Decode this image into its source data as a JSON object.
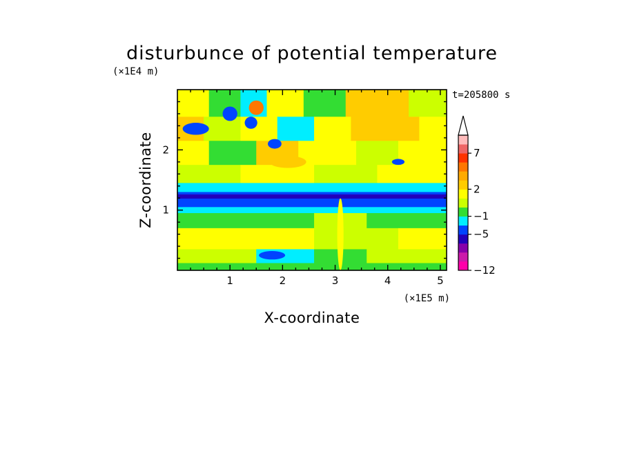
{
  "chart_data": {
    "type": "heatmap",
    "title": "disturbunce of potential temperature",
    "xlabel": "X-coordinate",
    "ylabel": "Z-coordinate",
    "x_unit": "(×1E5 m)",
    "y_unit": "(×1E4 m)",
    "time_label": "t=205800 s",
    "xlim": [
      0,
      5.12
    ],
    "ylim": [
      0,
      3.0
    ],
    "x_ticks": [
      "1",
      "2",
      "3",
      "4",
      "5"
    ],
    "y_ticks": [
      "1",
      "2"
    ],
    "colorbar": {
      "labels": [
        "7",
        "2",
        "−1",
        "−5",
        "−12"
      ],
      "colors_low_to_high": [
        "#ff00aa",
        "#cc1aaa",
        "#8800aa",
        "#2200bb",
        "#0044ff",
        "#00eeff",
        "#33dd33",
        "#ccff00",
        "#ffff00",
        "#ffcc00",
        "#ffaa00",
        "#ff7700",
        "#ff3300",
        "#ee6666",
        "#ffbbbb"
      ],
      "extends_high": true
    },
    "rows": [
      {
        "z": [
          2.55,
          3.0
        ],
        "cells": [
          {
            "x": [
              0.0,
              0.6
            ],
            "c": "#ffff00"
          },
          {
            "x": [
              0.6,
              1.2
            ],
            "c": "#33dd33"
          },
          {
            "x": [
              1.2,
              1.7
            ],
            "c": "#00eeff"
          },
          {
            "x": [
              1.7,
              2.4
            ],
            "c": "#ffff00"
          },
          {
            "x": [
              2.4,
              3.2
            ],
            "c": "#33dd33"
          },
          {
            "x": [
              3.2,
              4.4
            ],
            "c": "#ffcc00"
          },
          {
            "x": [
              4.4,
              5.12
            ],
            "c": "#ccff00"
          }
        ]
      },
      {
        "z": [
          2.15,
          2.55
        ],
        "cells": [
          {
            "x": [
              0.0,
              0.5
            ],
            "c": "#ffcc00"
          },
          {
            "x": [
              0.5,
              1.2
            ],
            "c": "#ccff00"
          },
          {
            "x": [
              1.2,
              1.9
            ],
            "c": "#ffff00"
          },
          {
            "x": [
              1.9,
              2.6
            ],
            "c": "#00eeff"
          },
          {
            "x": [
              2.6,
              3.3
            ],
            "c": "#ffff00"
          },
          {
            "x": [
              3.3,
              4.6
            ],
            "c": "#ffcc00"
          },
          {
            "x": [
              4.6,
              5.12
            ],
            "c": "#ffff00"
          }
        ]
      },
      {
        "z": [
          1.75,
          2.15
        ],
        "cells": [
          {
            "x": [
              0.0,
              0.6
            ],
            "c": "#ffff00"
          },
          {
            "x": [
              0.6,
              1.5
            ],
            "c": "#33dd33"
          },
          {
            "x": [
              1.5,
              2.3
            ],
            "c": "#ffcc00"
          },
          {
            "x": [
              2.3,
              3.4
            ],
            "c": "#ffff00"
          },
          {
            "x": [
              3.4,
              4.2
            ],
            "c": "#ccff00"
          },
          {
            "x": [
              4.2,
              5.12
            ],
            "c": "#ffff00"
          }
        ]
      },
      {
        "z": [
          1.45,
          1.75
        ],
        "cells": [
          {
            "x": [
              0.0,
              1.2
            ],
            "c": "#ccff00"
          },
          {
            "x": [
              1.2,
              2.6
            ],
            "c": "#ffff00"
          },
          {
            "x": [
              2.6,
              3.8
            ],
            "c": "#ccff00"
          },
          {
            "x": [
              3.8,
              5.12
            ],
            "c": "#ffff00"
          }
        ]
      },
      {
        "z": [
          1.3,
          1.45
        ],
        "cells": [
          {
            "x": [
              0.0,
              5.12
            ],
            "c": "#00eeff"
          }
        ]
      },
      {
        "z": [
          1.05,
          1.3
        ],
        "cells": [
          {
            "x": [
              0.0,
              5.12
            ],
            "c": "#0044ff"
          }
        ]
      },
      {
        "z": [
          0.95,
          1.05
        ],
        "cells": [
          {
            "x": [
              0.0,
              5.12
            ],
            "c": "#00eeff"
          }
        ]
      },
      {
        "z": [
          0.7,
          0.95
        ],
        "cells": [
          {
            "x": [
              0.0,
              2.6
            ],
            "c": "#33dd33"
          },
          {
            "x": [
              2.6,
              3.6
            ],
            "c": "#ccff00"
          },
          {
            "x": [
              3.6,
              5.12
            ],
            "c": "#33dd33"
          }
        ]
      },
      {
        "z": [
          0.35,
          0.7
        ],
        "cells": [
          {
            "x": [
              0.0,
              2.6
            ],
            "c": "#ffff00"
          },
          {
            "x": [
              2.6,
              4.2
            ],
            "c": "#ccff00"
          },
          {
            "x": [
              4.2,
              5.12
            ],
            "c": "#ffff00"
          }
        ]
      },
      {
        "z": [
          0.12,
          0.35
        ],
        "cells": [
          {
            "x": [
              0.0,
              1.5
            ],
            "c": "#ccff00"
          },
          {
            "x": [
              1.5,
              2.6
            ],
            "c": "#00eeff"
          },
          {
            "x": [
              2.6,
              3.6
            ],
            "c": "#33dd33"
          },
          {
            "x": [
              3.6,
              5.12
            ],
            "c": "#ccff00"
          }
        ]
      },
      {
        "z": [
          0.0,
          0.12
        ],
        "cells": [
          {
            "x": [
              0.0,
              5.12
            ],
            "c": "#33dd33"
          }
        ]
      }
    ],
    "features": [
      {
        "type": "blob",
        "x": 1.0,
        "z": 2.6,
        "rx": 0.14,
        "rz": 0.12,
        "c": "#0044ff"
      },
      {
        "type": "blob",
        "x": 1.5,
        "z": 2.7,
        "rx": 0.14,
        "rz": 0.12,
        "c": "#ff7700"
      },
      {
        "type": "blob",
        "x": 1.4,
        "z": 2.45,
        "rx": 0.12,
        "rz": 0.1,
        "c": "#0044ff"
      },
      {
        "type": "blob",
        "x": 1.85,
        "z": 2.1,
        "rx": 0.13,
        "rz": 0.08,
        "c": "#0044ff"
      },
      {
        "type": "blob",
        "x": 2.1,
        "z": 1.8,
        "rx": 0.35,
        "rz": 0.1,
        "c": "#ffcc00"
      },
      {
        "type": "blob",
        "x": 0.35,
        "z": 2.35,
        "rx": 0.25,
        "rz": 0.1,
        "c": "#0044ff"
      },
      {
        "type": "blob",
        "x": 4.2,
        "z": 1.8,
        "rx": 0.12,
        "rz": 0.05,
        "c": "#0044ff"
      },
      {
        "type": "blob",
        "x": 1.8,
        "z": 0.25,
        "rx": 0.25,
        "rz": 0.07,
        "c": "#0044ff"
      },
      {
        "type": "blob",
        "x": 3.1,
        "z": 0.6,
        "rx": 0.06,
        "rz": 0.6,
        "c": "#ffff00"
      }
    ]
  }
}
